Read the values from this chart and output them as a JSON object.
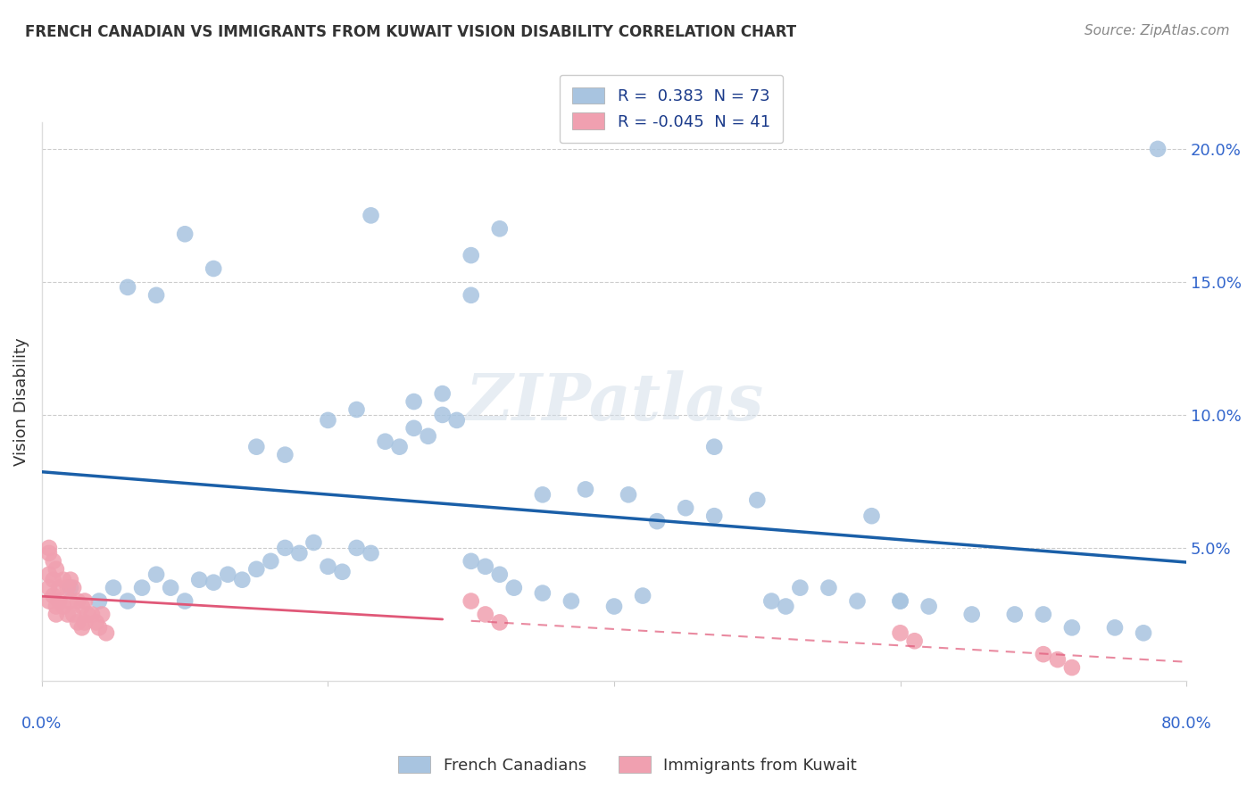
{
  "title": "FRENCH CANADIAN VS IMMIGRANTS FROM KUWAIT VISION DISABILITY CORRELATION CHART",
  "source": "Source: ZipAtlas.com",
  "ylabel": "Vision Disability",
  "ytick_labels": [
    "",
    "5.0%",
    "10.0%",
    "15.0%",
    "20.0%"
  ],
  "ytick_values": [
    0,
    0.05,
    0.1,
    0.15,
    0.2
  ],
  "xlim": [
    0.0,
    0.8
  ],
  "ylim": [
    0.0,
    0.21
  ],
  "blue_R": 0.383,
  "blue_N": 73,
  "pink_R": -0.045,
  "pink_N": 41,
  "blue_color": "#a8c4e0",
  "blue_line_color": "#1a5fa8",
  "pink_color": "#f0a0b0",
  "pink_line_color": "#e05878",
  "watermark": "ZIPatlas",
  "blue_scatter_x": [
    0.02,
    0.04,
    0.05,
    0.06,
    0.07,
    0.08,
    0.09,
    0.1,
    0.11,
    0.12,
    0.13,
    0.14,
    0.15,
    0.16,
    0.17,
    0.18,
    0.19,
    0.2,
    0.21,
    0.22,
    0.23,
    0.24,
    0.25,
    0.26,
    0.27,
    0.28,
    0.29,
    0.3,
    0.31,
    0.32,
    0.33,
    0.35,
    0.37,
    0.4,
    0.42,
    0.45,
    0.47,
    0.5,
    0.51,
    0.52,
    0.55,
    0.57,
    0.6,
    0.62,
    0.65,
    0.7,
    0.72,
    0.75,
    0.77,
    0.35,
    0.38,
    0.41,
    0.43,
    0.3,
    0.32,
    0.26,
    0.28,
    0.2,
    0.22,
    0.15,
    0.17,
    0.1,
    0.12,
    0.06,
    0.08,
    0.23,
    0.47,
    0.53,
    0.58,
    0.68,
    0.3,
    0.78,
    0.6
  ],
  "blue_scatter_y": [
    0.035,
    0.03,
    0.035,
    0.03,
    0.035,
    0.04,
    0.035,
    0.03,
    0.038,
    0.037,
    0.04,
    0.038,
    0.042,
    0.045,
    0.05,
    0.048,
    0.052,
    0.043,
    0.041,
    0.05,
    0.048,
    0.09,
    0.088,
    0.095,
    0.092,
    0.1,
    0.098,
    0.045,
    0.043,
    0.04,
    0.035,
    0.033,
    0.03,
    0.028,
    0.032,
    0.065,
    0.062,
    0.068,
    0.03,
    0.028,
    0.035,
    0.03,
    0.03,
    0.028,
    0.025,
    0.025,
    0.02,
    0.02,
    0.018,
    0.07,
    0.072,
    0.07,
    0.06,
    0.145,
    0.17,
    0.105,
    0.108,
    0.098,
    0.102,
    0.088,
    0.085,
    0.168,
    0.155,
    0.148,
    0.145,
    0.175,
    0.088,
    0.035,
    0.062,
    0.025,
    0.16,
    0.2,
    0.03
  ],
  "pink_scatter_x": [
    0.005,
    0.005,
    0.005,
    0.008,
    0.008,
    0.01,
    0.01,
    0.012,
    0.012,
    0.015,
    0.015,
    0.018,
    0.018,
    0.02,
    0.02,
    0.022,
    0.022,
    0.025,
    0.025,
    0.028,
    0.028,
    0.03,
    0.03,
    0.032,
    0.035,
    0.038,
    0.04,
    0.042,
    0.045,
    0.3,
    0.31,
    0.32,
    0.6,
    0.61,
    0.7,
    0.71,
    0.72,
    0.005,
    0.005,
    0.008,
    0.01
  ],
  "pink_scatter_y": [
    0.05,
    0.035,
    0.03,
    0.038,
    0.032,
    0.028,
    0.025,
    0.035,
    0.03,
    0.038,
    0.028,
    0.035,
    0.025,
    0.038,
    0.03,
    0.035,
    0.025,
    0.03,
    0.022,
    0.028,
    0.02,
    0.03,
    0.022,
    0.025,
    0.025,
    0.022,
    0.02,
    0.025,
    0.018,
    0.03,
    0.025,
    0.022,
    0.018,
    0.015,
    0.01,
    0.008,
    0.005,
    0.048,
    0.04,
    0.045,
    0.042
  ]
}
